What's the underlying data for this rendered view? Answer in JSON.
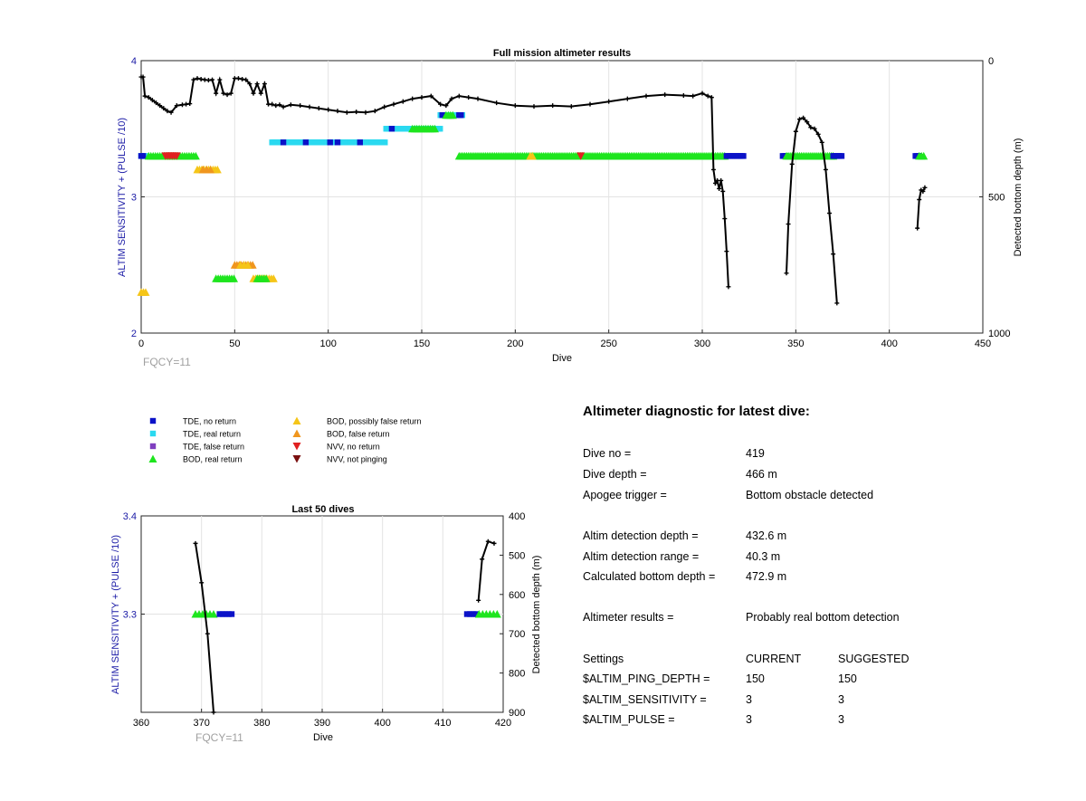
{
  "top_chart": {
    "title": "Full mission altimeter results",
    "xlabel": "Dive",
    "ylabel_left": "ALTIM SENSITIVITY + (PULSE /10)",
    "ylabel_right": "Detected bottom depth (m)",
    "footnote": "FQCY=11",
    "x_ticks": [
      "0",
      "50",
      "100",
      "150",
      "200",
      "250",
      "300",
      "350",
      "400",
      "450"
    ],
    "y_left_ticks": [
      "2",
      "3",
      "4"
    ],
    "y_right_ticks": [
      "0",
      "500",
      "1000"
    ]
  },
  "bottom_chart": {
    "title": "Last 50 dives",
    "xlabel": "Dive",
    "ylabel_left": "ALTIM SENSITIVITY + (PULSE /10)",
    "ylabel_right": "Detected bottom depth (m)",
    "footnote": "FQCY=11",
    "x_ticks": [
      "360",
      "370",
      "380",
      "390",
      "400",
      "410",
      "420"
    ],
    "y_left_ticks": [
      "3.3",
      "3.4"
    ],
    "y_right_ticks": [
      "400",
      "500",
      "600",
      "700",
      "800",
      "900"
    ]
  },
  "legend": {
    "items": [
      {
        "label": "TDE, no return",
        "color": "#0b12c8",
        "shape": "square"
      },
      {
        "label": "TDE, real return",
        "color": "#2ad9f0",
        "shape": "square"
      },
      {
        "label": "TDE, false return",
        "color": "#7f3fbf",
        "shape": "square"
      },
      {
        "label": "BOD, real return",
        "color": "#1ee51e",
        "shape": "triangle-up"
      },
      {
        "label": "BOD, possibly false return",
        "color": "#f5c518",
        "shape": "triangle-up"
      },
      {
        "label": "BOD, false return",
        "color": "#f0961e",
        "shape": "triangle-up"
      },
      {
        "label": "NVV, no return",
        "color": "#e02020",
        "shape": "triangle-down"
      },
      {
        "label": "NVV, not pinging",
        "color": "#7a1010",
        "shape": "triangle-down"
      }
    ]
  },
  "diagnostic": {
    "title": "Altimeter diagnostic for latest dive:",
    "rows": [
      {
        "label": "Dive no =",
        "value": "419"
      },
      {
        "label": "Dive depth =",
        "value": "466 m"
      },
      {
        "label": "Apogee trigger =",
        "value": "Bottom obstacle detected"
      },
      {
        "label": "Altim detection depth =",
        "value": "432.6 m"
      },
      {
        "label": "Altim detection range =",
        "value": "40.3 m"
      },
      {
        "label": "Calculated bottom depth =",
        "value": "472.9 m"
      },
      {
        "label": "Altimeter results =",
        "value": "Probably real bottom detection"
      }
    ],
    "settings_header": {
      "label": "Settings",
      "current": "CURRENT",
      "suggested": "SUGGESTED"
    },
    "settings": [
      {
        "label": "$ALTIM_PING_DEPTH =",
        "current": "150",
        "suggested": "150"
      },
      {
        "label": "$ALTIM_SENSITIVITY =",
        "current": "3",
        "suggested": "3"
      },
      {
        "label": "$ALTIM_PULSE =",
        "current": "3",
        "suggested": "3"
      }
    ]
  },
  "chart_data": [
    {
      "type": "scatter",
      "title": "Full mission altimeter results",
      "xlabel": "Dive",
      "ylabel": "ALTIM SENSITIVITY + (PULSE /10)",
      "y2label": "Detected bottom depth (m)",
      "xlim": [
        0,
        450
      ],
      "ylim": [
        2,
        4
      ],
      "y2lim": [
        0,
        1000
      ],
      "y2_reversed": true,
      "grid": true,
      "colors": {
        "tde_no": "#0b12c8",
        "tde_real": "#2ad9f0",
        "tde_false": "#7f3fbf",
        "bod_real": "#1ee51e",
        "bod_possible": "#f5c518",
        "bod_false": "#f0961e",
        "nvv_no": "#e02020",
        "nvv_not": "#7a1010",
        "depth": "#000000"
      },
      "markers": [
        {
          "kind": "tde_real",
          "y": 3.3,
          "x_from": 0,
          "x_to": 2,
          "step": 1
        },
        {
          "kind": "tde_no",
          "y": 3.3,
          "x_from": 0,
          "x_to": 1,
          "step": 1
        },
        {
          "kind": "bod_real",
          "y": 3.3,
          "x_from": 4,
          "x_to": 30,
          "step": 1.2
        },
        {
          "kind": "nvv_no",
          "y": 3.3,
          "x_from": 13,
          "x_to": 19,
          "step": 1.2
        },
        {
          "kind": "bod_possible",
          "y": 3.2,
          "x_from": 30,
          "x_to": 41,
          "step": 1.2
        },
        {
          "kind": "bod_false",
          "y": 3.2,
          "x_from": 33,
          "x_to": 37,
          "step": 2
        },
        {
          "kind": "bod_false",
          "y": 2.5,
          "x_from": 50,
          "x_to": 60,
          "step": 1.2
        },
        {
          "kind": "bod_possible",
          "y": 2.5,
          "x_from": 53,
          "x_to": 57,
          "step": 2
        },
        {
          "kind": "bod_real",
          "y": 2.4,
          "x_from": 40,
          "x_to": 50,
          "step": 1.2
        },
        {
          "kind": "bod_possible",
          "y": 2.4,
          "x_from": 60,
          "x_to": 71,
          "step": 1.2
        },
        {
          "kind": "bod_real",
          "y": 2.4,
          "x_from": 62,
          "x_to": 67,
          "step": 1.2
        },
        {
          "kind": "bod_possible",
          "y": 2.3,
          "x_from": 0,
          "x_to": 3,
          "step": 1.2
        },
        {
          "kind": "tde_real",
          "y": 3.4,
          "x_from": 70,
          "x_to": 131,
          "step": 0.9
        },
        {
          "kind": "tde_no",
          "y": 3.4,
          "x_from": 76,
          "x_to": 76,
          "step": 1
        },
        {
          "kind": "tde_no",
          "y": 3.4,
          "x_from": 88,
          "x_to": 88,
          "step": 1
        },
        {
          "kind": "tde_no",
          "y": 3.4,
          "x_from": 101,
          "x_to": 101,
          "step": 1
        },
        {
          "kind": "tde_no",
          "y": 3.4,
          "x_from": 105,
          "x_to": 105,
          "step": 1
        },
        {
          "kind": "tde_no",
          "y": 3.4,
          "x_from": 117,
          "x_to": 117,
          "step": 1
        },
        {
          "kind": "tde_real",
          "y": 3.5,
          "x_from": 131,
          "x_to": 160,
          "step": 0.9
        },
        {
          "kind": "tde_no",
          "y": 3.5,
          "x_from": 134,
          "x_to": 134,
          "step": 1
        },
        {
          "kind": "bod_real",
          "y": 3.5,
          "x_from": 145,
          "x_to": 158,
          "step": 1.2
        },
        {
          "kind": "tde_real",
          "y": 3.6,
          "x_from": 160,
          "x_to": 172,
          "step": 0.9
        },
        {
          "kind": "tde_no",
          "y": 3.6,
          "x_from": 161,
          "x_to": 161,
          "step": 1
        },
        {
          "kind": "tde_no",
          "y": 3.6,
          "x_from": 170,
          "x_to": 171,
          "step": 1
        },
        {
          "kind": "bod_real",
          "y": 3.6,
          "x_from": 163,
          "x_to": 167,
          "step": 1.2
        },
        {
          "kind": "bod_real",
          "y": 3.3,
          "x_from": 170,
          "x_to": 312,
          "step": 1.0
        },
        {
          "kind": "bod_possible",
          "y": 3.3,
          "x_from": 208,
          "x_to": 210,
          "step": 1.2
        },
        {
          "kind": "nvv_no",
          "y": 3.3,
          "x_from": 235,
          "x_to": 235,
          "step": 1
        },
        {
          "kind": "tde_no",
          "y": 3.3,
          "x_from": 313,
          "x_to": 322,
          "step": 0.9
        },
        {
          "kind": "tde_no",
          "y": 3.3,
          "x_from": 343,
          "x_to": 345,
          "step": 0.9
        },
        {
          "kind": "bod_real",
          "y": 3.3,
          "x_from": 345,
          "x_to": 370,
          "step": 1.0
        },
        {
          "kind": "tde_no",
          "y": 3.3,
          "x_from": 370,
          "x_to": 375,
          "step": 0.9
        },
        {
          "kind": "tde_no",
          "y": 3.3,
          "x_from": 414,
          "x_to": 416,
          "step": 0.9
        },
        {
          "kind": "bod_real",
          "y": 3.3,
          "x_from": 416,
          "x_to": 419,
          "step": 1.2
        }
      ],
      "depth_series": [
        {
          "x": [
            0,
            1,
            2,
            4,
            6,
            8,
            10,
            12,
            14,
            16,
            19,
            22,
            24,
            26,
            28,
            30,
            32,
            34,
            36,
            38,
            40,
            42,
            44,
            46,
            48,
            50,
            52,
            54,
            56,
            58,
            60,
            62,
            64,
            66,
            68,
            70,
            72,
            74,
            76,
            80,
            85,
            90,
            95,
            100,
            105,
            110,
            115,
            120,
            125,
            130,
            135,
            140,
            145,
            150,
            155,
            160,
            163,
            166,
            170,
            175,
            180,
            190,
            200,
            210,
            220,
            230,
            240,
            250,
            260,
            270,
            280,
            290,
            295,
            300,
            303,
            305,
            306,
            307,
            308,
            309,
            310,
            311,
            312,
            313,
            314
          ],
          "y2": [
            60,
            60,
            130,
            135,
            145,
            155,
            165,
            175,
            185,
            190,
            165,
            162,
            160,
            158,
            70,
            65,
            68,
            70,
            72,
            70,
            120,
            70,
            120,
            125,
            120,
            65,
            65,
            68,
            70,
            85,
            120,
            85,
            120,
            85,
            160,
            160,
            165,
            162,
            170,
            162,
            165,
            170,
            175,
            180,
            185,
            190,
            188,
            190,
            185,
            170,
            160,
            150,
            140,
            135,
            130,
            160,
            165,
            140,
            130,
            135,
            140,
            155,
            165,
            168,
            165,
            168,
            160,
            150,
            140,
            130,
            125,
            128,
            130,
            120,
            130,
            135,
            400,
            450,
            440,
            470,
            440,
            480,
            580,
            700,
            830
          ]
        },
        {
          "x": [
            345,
            346,
            348,
            350,
            352,
            354,
            356,
            358,
            360,
            362,
            364,
            366,
            368,
            370,
            372
          ],
          "y2": [
            780,
            600,
            380,
            260,
            215,
            210,
            225,
            245,
            250,
            270,
            300,
            400,
            560,
            710,
            890
          ]
        },
        {
          "x": [
            415,
            416,
            417,
            418,
            419
          ],
          "y2": [
            615,
            510,
            475,
            480,
            466
          ]
        }
      ]
    },
    {
      "type": "scatter",
      "title": "Last 50 dives",
      "xlabel": "Dive",
      "ylabel": "ALTIM SENSITIVITY + (PULSE /10)",
      "y2label": "Detected bottom depth (m)",
      "xlim": [
        360,
        420
      ],
      "ylim": [
        3.2,
        3.4
      ],
      "y2lim": [
        400,
        900
      ],
      "y2_reversed": true,
      "grid": true,
      "markers": [
        {
          "kind": "bod_real",
          "y": 3.3,
          "x_from": 369,
          "x_to": 372,
          "step": 0.6
        },
        {
          "kind": "tde_no",
          "y": 3.3,
          "x_from": 373,
          "x_to": 375,
          "step": 0.5
        },
        {
          "kind": "tde_no",
          "y": 3.3,
          "x_from": 414,
          "x_to": 415.5,
          "step": 0.5
        },
        {
          "kind": "bod_real",
          "y": 3.3,
          "x_from": 416,
          "x_to": 419,
          "step": 0.6
        }
      ],
      "depth_series": [
        {
          "x": [
            369,
            370,
            371,
            372
          ],
          "y2": [
            470,
            570,
            700,
            900
          ]
        },
        {
          "x": [
            415.9,
            416.5,
            417.5,
            418.5
          ],
          "y2": [
            615,
            510,
            465,
            470
          ]
        }
      ]
    }
  ]
}
